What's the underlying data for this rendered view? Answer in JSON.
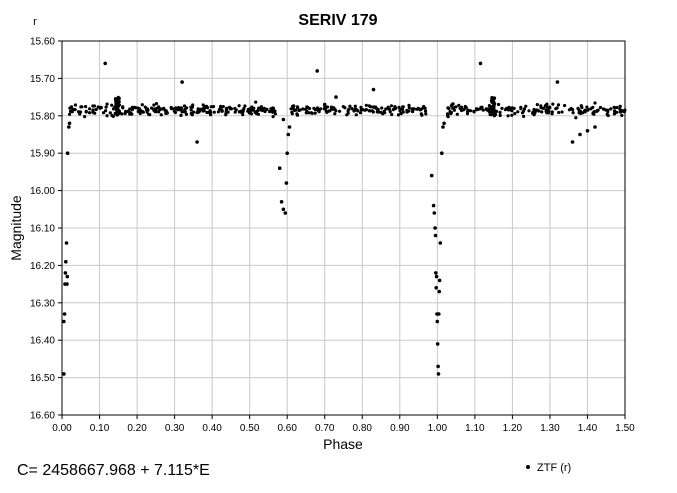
{
  "chart_data": {
    "type": "scatter",
    "title": "SERIV 179",
    "corner_label": "r",
    "xlabel": "Phase",
    "ylabel": "Magnitude",
    "xlim": [
      0.0,
      1.5
    ],
    "ylim": [
      15.6,
      16.6
    ],
    "y_inverted": true,
    "grid": true,
    "x_ticks": [
      "0.00",
      "0.10",
      "0.20",
      "0.30",
      "0.40",
      "0.50",
      "0.60",
      "0.70",
      "0.80",
      "0.90",
      "1.00",
      "1.10",
      "1.20",
      "1.30",
      "1.40",
      "1.50"
    ],
    "y_ticks": [
      "15.60",
      "15.70",
      "15.80",
      "15.90",
      "16.00",
      "16.10",
      "16.20",
      "16.30",
      "16.40",
      "16.50",
      "16.60"
    ],
    "formula": "C= 2458667.968 + 7.115*E",
    "legend": {
      "position": "bottom-right",
      "label": "ZTF (r)"
    },
    "series": [
      {
        "name": "ZTF (r)",
        "color": "#000000",
        "points": [
          [
            0.005,
            16.49
          ],
          [
            0.005,
            16.35
          ],
          [
            0.007,
            16.33
          ],
          [
            0.008,
            16.25
          ],
          [
            0.009,
            16.22
          ],
          [
            0.01,
            16.19
          ],
          [
            0.012,
            16.14
          ],
          [
            0.015,
            15.9
          ],
          [
            0.018,
            15.83
          ],
          [
            0.02,
            15.82
          ],
          [
            0.013,
            16.25
          ],
          [
            0.014,
            16.23
          ],
          [
            0.115,
            15.66
          ],
          [
            0.32,
            15.71
          ],
          [
            0.36,
            15.87
          ],
          [
            0.68,
            15.68
          ],
          [
            0.73,
            15.75
          ],
          [
            0.83,
            15.73
          ],
          [
            0.7,
            15.77
          ],
          [
            0.59,
            15.81
          ],
          [
            0.58,
            15.94
          ],
          [
            0.585,
            16.03
          ],
          [
            0.59,
            16.05
          ],
          [
            0.595,
            16.06
          ],
          [
            0.598,
            15.98
          ],
          [
            0.6,
            15.9
          ],
          [
            0.603,
            15.85
          ],
          [
            0.606,
            15.83
          ],
          [
            0.985,
            15.96
          ],
          [
            0.99,
            16.04
          ],
          [
            0.992,
            16.06
          ],
          [
            0.994,
            16.1
          ],
          [
            0.995,
            16.12
          ],
          [
            0.996,
            16.22
          ],
          [
            0.997,
            16.26
          ],
          [
            0.998,
            16.23
          ],
          [
            0.999,
            16.33
          ],
          [
            1.0,
            16.35
          ],
          [
            1.001,
            16.41
          ],
          [
            1.002,
            16.47
          ],
          [
            1.003,
            16.49
          ],
          [
            1.004,
            16.33
          ],
          [
            1.005,
            16.27
          ],
          [
            1.006,
            16.24
          ],
          [
            1.008,
            16.14
          ],
          [
            1.012,
            15.9
          ],
          [
            1.015,
            15.83
          ],
          [
            1.018,
            15.82
          ],
          [
            1.115,
            15.66
          ],
          [
            1.32,
            15.71
          ],
          [
            1.36,
            15.87
          ],
          [
            1.4,
            15.84
          ],
          [
            1.42,
            15.83
          ],
          [
            1.38,
            15.85
          ]
        ]
      }
    ]
  }
}
